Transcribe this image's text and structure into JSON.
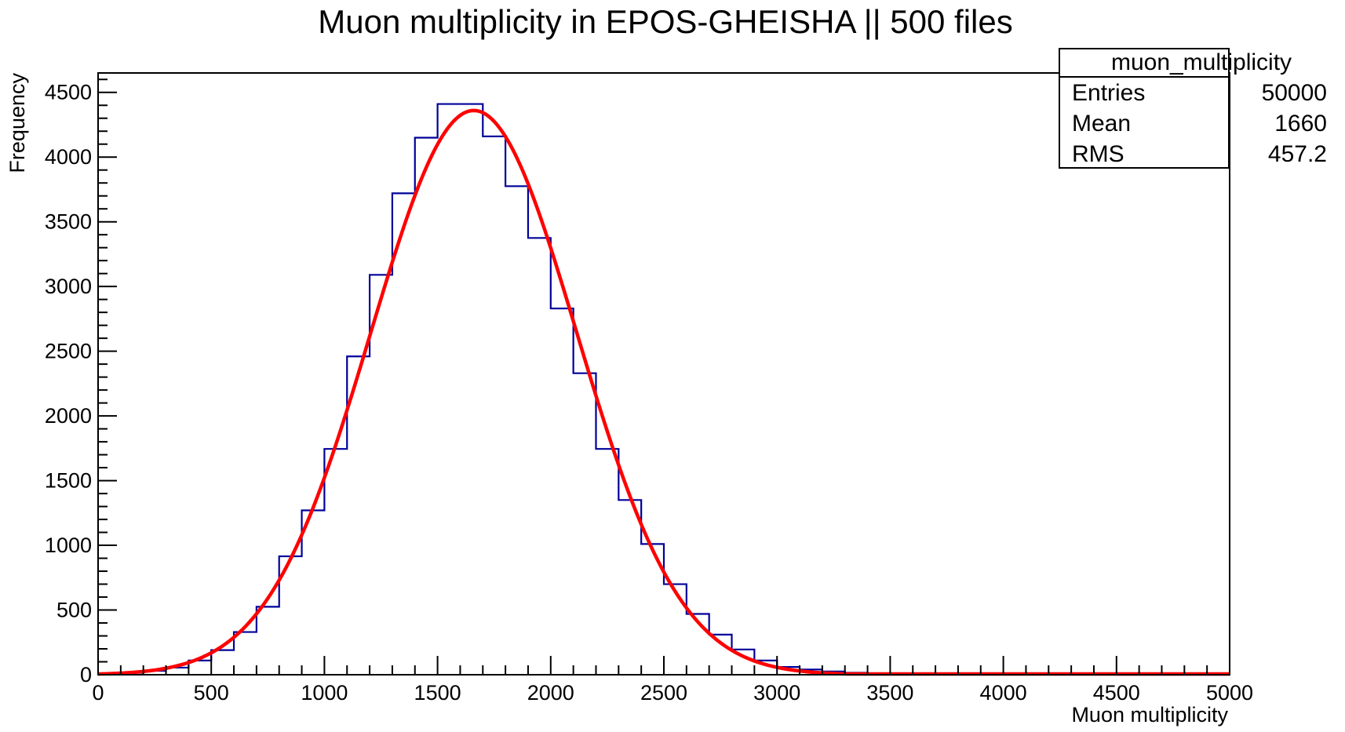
{
  "chart_data": {
    "type": "bar",
    "title": "Muon multiplicity in EPOS-GHEISHA || 500 files",
    "xlabel": "Muon multiplicity",
    "ylabel": "Frequency",
    "xlim": [
      0,
      5000
    ],
    "ylim": [
      0,
      4650
    ],
    "x_ticks": [
      0,
      500,
      1000,
      1500,
      2000,
      2500,
      3000,
      3500,
      4000,
      4500,
      5000
    ],
    "y_ticks": [
      0,
      500,
      1000,
      1500,
      2000,
      2500,
      3000,
      3500,
      4000,
      4500
    ],
    "grid": false,
    "bin_width": 100,
    "bin_edges_start": 0,
    "series": [
      {
        "type": "histogram",
        "color": "#000099",
        "values": [
          5,
          15,
          30,
          55,
          110,
          190,
          330,
          525,
          915,
          1270,
          1745,
          2460,
          3090,
          3720,
          4150,
          4410,
          4410,
          4160,
          3775,
          3375,
          2830,
          2330,
          1745,
          1350,
          1010,
          700,
          470,
          310,
          195,
          110,
          60,
          40,
          25,
          15,
          10,
          7,
          5,
          4,
          3,
          2,
          2,
          1,
          1,
          1,
          1,
          0,
          0,
          0,
          0,
          0
        ]
      },
      {
        "type": "line",
        "color": "#ff0000",
        "fit": "gaussian",
        "amplitude": 4360,
        "mean": 1660,
        "sigma": 455,
        "x_range": [
          0,
          5000
        ]
      }
    ],
    "stats_box": {
      "name": "muon_multiplicity",
      "rows": [
        {
          "label": "Entries",
          "value": "50000"
        },
        {
          "label": "Mean",
          "value": "1660"
        },
        {
          "label": "RMS",
          "value": "457.2"
        }
      ],
      "position": "top-right"
    }
  }
}
